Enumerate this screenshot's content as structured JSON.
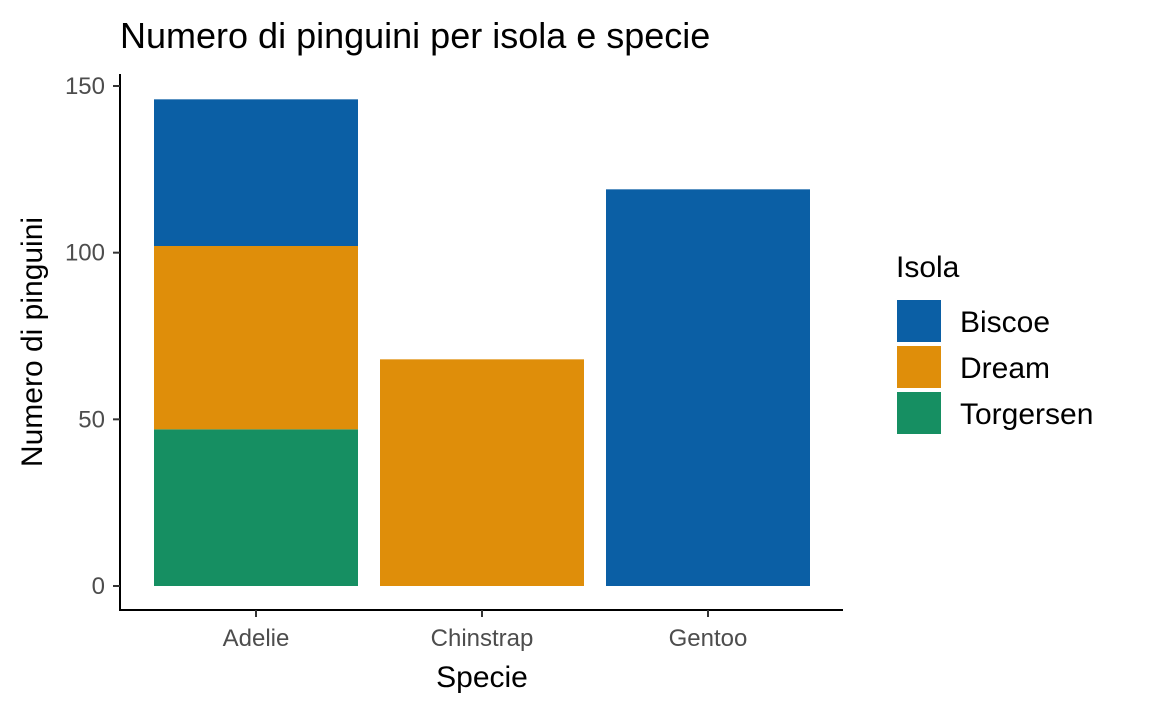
{
  "chart_data": {
    "type": "bar",
    "stacked": true,
    "title": "Numero di pinguini per isola e specie",
    "xlabel": "Specie",
    "ylabel": "Numero di pinguini",
    "categories": [
      "Adelie",
      "Chinstrap",
      "Gentoo"
    ],
    "series": [
      {
        "name": "Torgersen",
        "color": "#168F62",
        "values": [
          47,
          0,
          0
        ]
      },
      {
        "name": "Dream",
        "color": "#DF8E0A",
        "values": [
          55,
          68,
          0
        ]
      },
      {
        "name": "Biscoe",
        "color": "#0B5FA5",
        "values": [
          44,
          0,
          119
        ]
      }
    ],
    "ylim": [
      0,
      150
    ],
    "yticks": [
      "0",
      "50",
      "100",
      "150"
    ],
    "legend": {
      "title": "Isola",
      "position": "right",
      "order": [
        "Biscoe",
        "Dream",
        "Torgersen"
      ]
    },
    "grid": false
  }
}
